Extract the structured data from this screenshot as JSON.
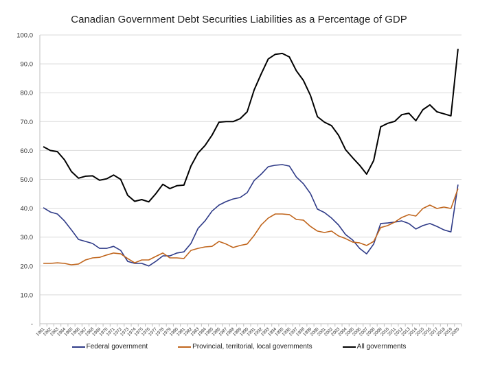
{
  "chart_data": {
    "type": "line",
    "title": "Canadian Government  Debt Securities Liabilities as a Percentage of GDP",
    "xlabel": "",
    "ylabel": "",
    "ylim": [
      0,
      100
    ],
    "yticks": [
      0,
      10,
      20,
      30,
      40,
      50,
      60,
      70,
      80,
      90,
      100
    ],
    "ytick_labels": [
      "-",
      "10.0",
      "20.0",
      "30.0",
      "40.0",
      "50.0",
      "60.0",
      "70.0",
      "80.0",
      "90.0",
      "100.0"
    ],
    "grid": true,
    "legend_position": "bottom",
    "x": [
      "1961",
      "1962",
      "1963",
      "1964",
      "1965",
      "1966",
      "1967",
      "1968",
      "1969",
      "1970",
      "1971",
      "1972",
      "1973",
      "1974",
      "1975",
      "1976",
      "1977",
      "1978",
      "1979",
      "1980",
      "1981",
      "1982",
      "1983",
      "1984",
      "1985",
      "1986",
      "1987",
      "1988",
      "1989",
      "1990",
      "1991",
      "1992",
      "1993",
      "1994",
      "1995",
      "1996",
      "1997",
      "1998",
      "1999",
      "2000",
      "2001",
      "2002",
      "2003",
      "2004",
      "2005",
      "2006",
      "2007",
      "2008",
      "2009",
      "2010",
      "2011",
      "2012",
      "2013",
      "2014",
      "2015",
      "2016",
      "2017",
      "2018",
      "2019",
      "2020"
    ],
    "series": [
      {
        "name": "Federal government",
        "color": "#2e3a87",
        "values": [
          40.2,
          38.7,
          38.0,
          35.6,
          32.5,
          29.2,
          28.5,
          27.8,
          26.1,
          26.1,
          26.8,
          25.4,
          21.6,
          20.9,
          20.9,
          20.0,
          21.6,
          23.5,
          23.5,
          24.5,
          24.9,
          27.8,
          33.0,
          35.6,
          39.0,
          41.1,
          42.3,
          43.2,
          43.7,
          45.4,
          49.6,
          51.8,
          54.4,
          54.9,
          55.1,
          54.6,
          50.8,
          48.5,
          45.1,
          39.7,
          38.5,
          36.6,
          34.2,
          30.9,
          29.0,
          26.1,
          24.2,
          27.6,
          34.7,
          34.9,
          35.2,
          35.6,
          34.7,
          32.8,
          34.0,
          34.7,
          33.7,
          32.5,
          31.8,
          48.2
        ]
      },
      {
        "name": "Provincial, territorial, local governments",
        "color": "#c0651c",
        "values": [
          20.9,
          20.9,
          21.1,
          20.9,
          20.4,
          20.7,
          22.1,
          22.8,
          23.0,
          23.8,
          24.5,
          24.2,
          22.6,
          21.1,
          22.1,
          22.1,
          23.3,
          24.5,
          22.8,
          22.8,
          22.6,
          25.4,
          26.1,
          26.6,
          26.8,
          28.5,
          27.6,
          26.4,
          27.1,
          27.6,
          30.6,
          34.2,
          36.6,
          38.0,
          38.0,
          37.8,
          36.1,
          35.9,
          33.7,
          32.1,
          31.6,
          32.1,
          30.4,
          29.5,
          28.3,
          28.0,
          27.1,
          28.5,
          33.3,
          34.0,
          35.2,
          36.8,
          37.8,
          37.3,
          39.9,
          41.1,
          39.9,
          40.4,
          39.9,
          46.8
        ]
      },
      {
        "name": "All governments",
        "color": "#000000",
        "values": [
          61.3,
          60.0,
          59.6,
          56.8,
          52.7,
          50.4,
          51.1,
          51.2,
          49.7,
          50.2,
          51.5,
          50.0,
          44.5,
          42.4,
          43.0,
          42.2,
          45.0,
          48.3,
          46.8,
          47.8,
          48.0,
          54.6,
          59.1,
          61.7,
          65.3,
          69.8,
          70.0,
          70.0,
          71.0,
          73.4,
          81.0,
          86.5,
          91.7,
          93.3,
          93.6,
          92.4,
          87.6,
          84.3,
          79.1,
          71.7,
          69.8,
          68.6,
          65.3,
          60.3,
          57.5,
          54.9,
          51.8,
          56.5,
          68.2,
          69.4,
          70.1,
          72.4,
          72.9,
          70.3,
          74.1,
          75.8,
          73.4,
          72.7,
          72.0,
          95.2
        ]
      }
    ]
  }
}
